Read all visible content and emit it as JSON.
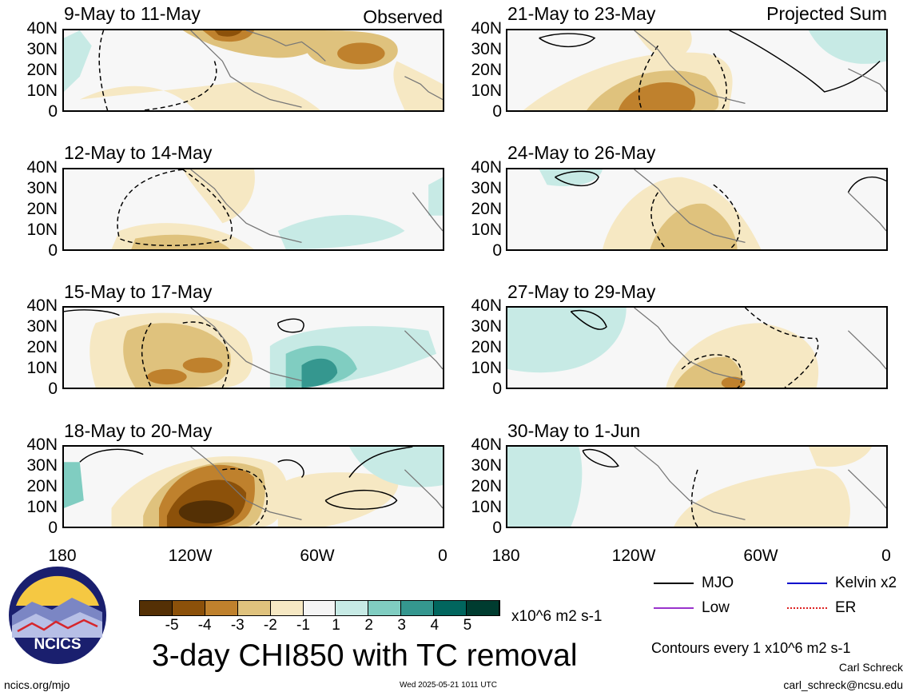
{
  "tags": {
    "observed": "Observed",
    "projected": "Projected Sum"
  },
  "panels": [
    {
      "title": "9-May to 11-May"
    },
    {
      "title": "12-May to 14-May"
    },
    {
      "title": "15-May to 17-May"
    },
    {
      "title": "18-May to 20-May"
    },
    {
      "title": "21-May to 23-May"
    },
    {
      "title": "24-May to 26-May"
    },
    {
      "title": "27-May to 29-May"
    },
    {
      "title": "30-May to 1-Jun"
    }
  ],
  "y_ticks": [
    "40N",
    "30N",
    "20N",
    "10N",
    "0"
  ],
  "x_ticks": [
    "180",
    "120W",
    "60W",
    "0"
  ],
  "colorbar": {
    "labels": [
      "-5",
      "-4",
      "-3",
      "-2",
      "-1",
      "1",
      "2",
      "3",
      "4",
      "5"
    ],
    "colors": [
      "#543005",
      "#8c510a",
      "#bf812d",
      "#dfc27d",
      "#f6e8c3",
      "#f5f5f5",
      "#c7eae5",
      "#80cdc1",
      "#35978f",
      "#01665e",
      "#003c30"
    ],
    "units": "x10^6 m2 s-1"
  },
  "legend": {
    "mjo": "MJO",
    "kelvin": "Kelvin x2",
    "low": "Low",
    "er": "ER",
    "colors": {
      "mjo": "#000000",
      "kelvin": "#0000cc",
      "low": "#9933cc",
      "er": "#dd2222"
    }
  },
  "main_title": "3-day CHI850 with TC removal",
  "contours_note": "Contours every 1 x10^6 m2 s-1",
  "author": "Carl Schreck",
  "email": "carl_schreck@ncsu.edu",
  "site": "ncics.org/mjo",
  "timestamp": "Wed 2025-05-21 1011 UTC",
  "logo_text": "NCICS",
  "chart_data": {
    "type": "heatmap",
    "title": "3-day CHI850 with TC removal",
    "units": "x10^6 m2 s-1",
    "x_range": [
      "180",
      "0"
    ],
    "y_range": [
      "0",
      "40N"
    ],
    "contour_levels": [
      -5,
      -4,
      -3,
      -2,
      -1,
      1,
      2,
      3,
      4,
      5
    ],
    "panels": [
      "9-May to 11-May",
      "12-May to 14-May",
      "15-May to 17-May",
      "18-May to 20-May",
      "21-May to 23-May",
      "24-May to 26-May",
      "27-May to 29-May",
      "30-May to 1-Jun"
    ],
    "legend": [
      "MJO",
      "Kelvin x2",
      "Low",
      "ER"
    ]
  }
}
